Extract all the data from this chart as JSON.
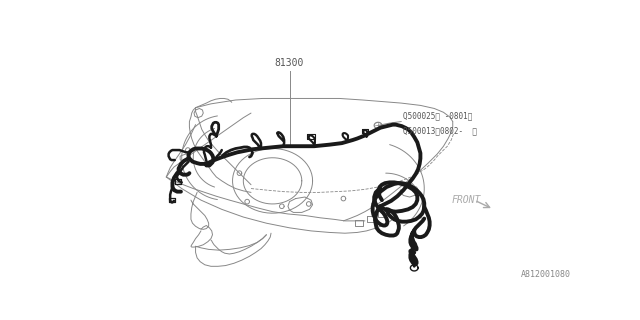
{
  "background_color": "#ffffff",
  "line_color": "#1a1a1a",
  "thin_line_color": "#888888",
  "label_81300": "81300",
  "label_q1": "Q500025（ -0801）",
  "label_q2": "Q500013（0802-  ）",
  "label_front": "FRONT",
  "label_part_num": "A812001080",
  "fig_width": 6.4,
  "fig_height": 3.2,
  "dpi": 100
}
